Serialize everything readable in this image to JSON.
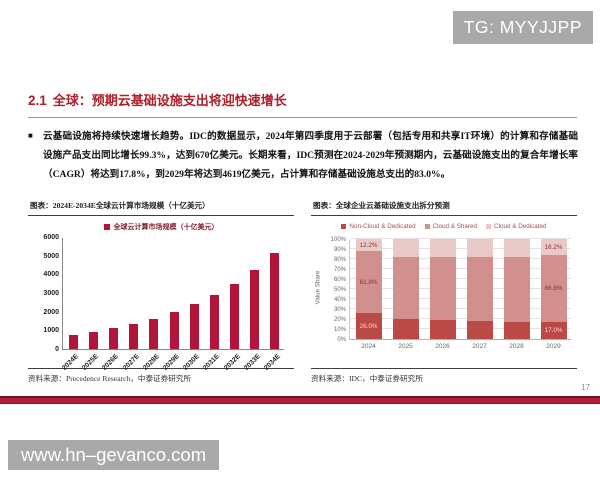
{
  "page": {
    "top_badge": "TG: MYYJJPP",
    "bottom_badge": "www.hn–gevanco.com",
    "page_number": "17"
  },
  "slide": {
    "section_number": "2.1",
    "title": "全球：预期云基础设施支出将迎快速增长",
    "bullet_marker": "■",
    "bullet": "云基础设施将持续快速增长趋势。IDC的数据显示，2024年第四季度用于云部署（包括专用和共享IT环境）的计算和存储基础设施产品支出同比增长99.3%，达到670亿美元。长期来看，IDC预测在2024-2029年预测期内，云基础设施支出的复合年增长率（CAGR）将达到17.8%，到2029年将达到4619亿美元，占计算和存储基础设施总支出的83.0%。"
  },
  "figures": {
    "left": {
      "caption": "图表：2024E-2034E全球云计算市场规模（十亿美元）",
      "source": "资料来源：Precedence Research，中泰证券研究所"
    },
    "right": {
      "caption": "图表：全球企业云基础设施支出拆分预测",
      "source": "资料来源：IDC，中泰证券研究所"
    }
  },
  "colors": {
    "title_red": "#ae1e28",
    "band_red": "#b01e3c",
    "badge_gray": "#a9a9a9"
  },
  "chart_data": [
    {
      "type": "bar",
      "title": "2024E-2034E全球云计算市场规模（十亿美元）",
      "legend": [
        "全球云计算市场规模（十亿美元）"
      ],
      "legend_position": "top",
      "categories": [
        "2024E",
        "2025E",
        "2026E",
        "2027E",
        "2028E",
        "2029E",
        "2030E",
        "2031E",
        "2032E",
        "2033E",
        "2034E"
      ],
      "values": [
        752,
        912,
        1105,
        1340,
        1624,
        1968,
        2386,
        2892,
        3505,
        4249,
        5151
      ],
      "bar_color": "#b1153a",
      "xlabel": "",
      "ylabel": "",
      "ylim": [
        0,
        6000
      ],
      "ytick_step": 1000,
      "grid": false
    },
    {
      "type": "bar",
      "stacked": true,
      "percent": true,
      "title": "全球企业云基础设施支出拆分预测",
      "legend_position": "top",
      "categories": [
        "2024",
        "2025",
        "2026",
        "2027",
        "2028",
        "2029"
      ],
      "series": [
        {
          "name": "Non-Cloud & Dedicated",
          "color": "#bb4a47",
          "values": [
            26.0,
            20.5,
            19.5,
            18.5,
            17.5,
            17.0
          ],
          "labels": [
            "26.0%",
            null,
            null,
            null,
            null,
            "17.0%"
          ],
          "label_color": "#f3dad8"
        },
        {
          "name": "Cloud & Shared",
          "color": "#d18f8d",
          "values": [
            61.8,
            62.0,
            62.5,
            63.5,
            65.0,
            66.8
          ],
          "labels": [
            "61.8%",
            null,
            null,
            null,
            null,
            "66.8%"
          ],
          "label_color": "#8d2f33"
        },
        {
          "name": "Cloud & Dedicated",
          "color": "#e9cac8",
          "values": [
            12.2,
            17.5,
            18.0,
            18.0,
            17.5,
            16.2
          ],
          "labels": [
            "12.2%",
            null,
            null,
            null,
            null,
            "16.2%"
          ],
          "label_color": "#8d2f33"
        }
      ],
      "xlabel": "",
      "ylabel": "Value Share",
      "ylim": [
        0,
        100
      ],
      "ytick_step": 10,
      "ytick_suffix": "%",
      "grid": true
    }
  ]
}
